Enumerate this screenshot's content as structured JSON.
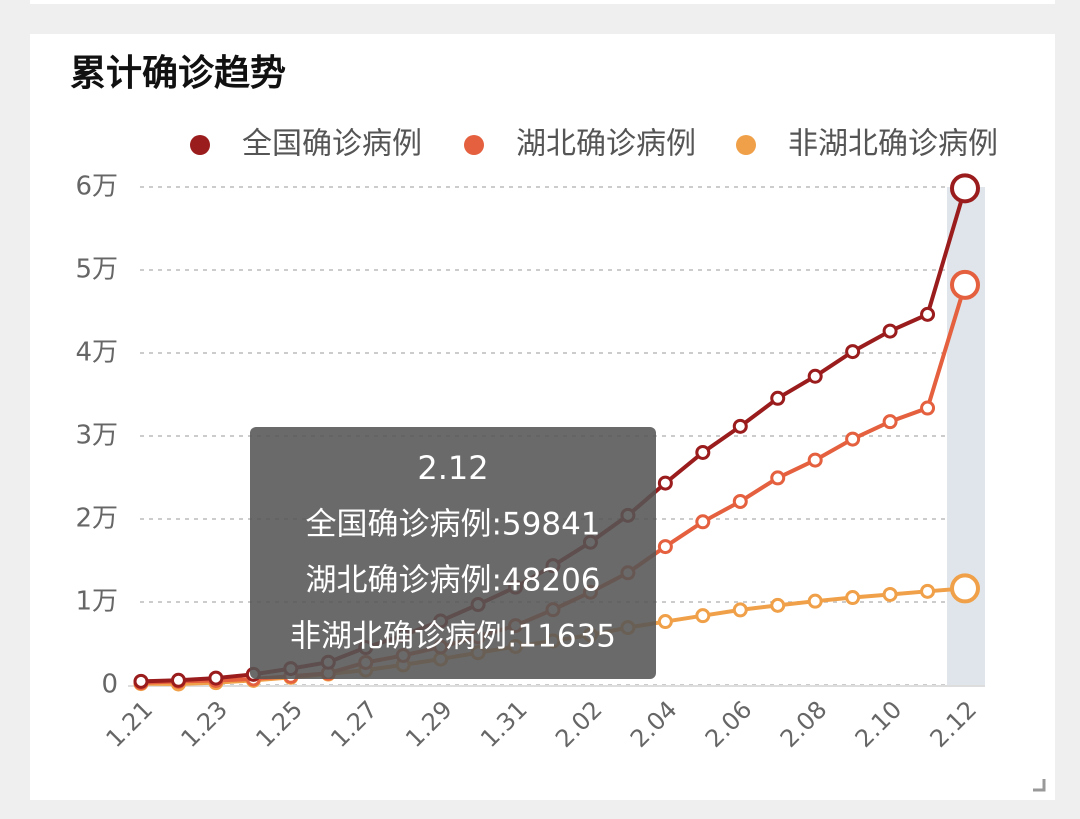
{
  "chart_data": {
    "type": "line",
    "title": "累计确诊趋势",
    "categories": [
      "1.21",
      null,
      "1.23",
      null,
      "1.25",
      null,
      "1.27",
      null,
      "1.29",
      null,
      "1.31",
      null,
      "2.02",
      null,
      "2.04",
      null,
      "2.06",
      null,
      "2.08",
      null,
      "2.10",
      null,
      "2.12"
    ],
    "series": [
      {
        "name": "全国确诊病例",
        "color": "#9b1c1c",
        "values": [
          440,
          571,
          830,
          1287,
          1975,
          2744,
          4515,
          5974,
          7711,
          9692,
          11791,
          14380,
          17205,
          20438,
          24324,
          28018,
          31161,
          34546,
          37198,
          40171,
          42638,
          44653,
          59841
        ]
      },
      {
        "name": "湖北确诊病例",
        "color": "#e4603e",
        "values": [
          270,
          444,
          549,
          729,
          1052,
          1423,
          2714,
          3554,
          4586,
          5806,
          7153,
          9074,
          11177,
          13522,
          16678,
          19665,
          22112,
          24953,
          27100,
          29631,
          31728,
          33366,
          48206
        ]
      },
      {
        "name": "非湖北确诊病例",
        "color": "#f0a048",
        "values": [
          170,
          127,
          281,
          558,
          923,
          1321,
          1801,
          2420,
          3125,
          3886,
          4638,
          5306,
          6028,
          6916,
          7646,
          8353,
          9049,
          9593,
          10098,
          10540,
          10910,
          11287,
          11635
        ]
      }
    ],
    "ylim": [
      0,
      60000
    ],
    "yticks": [
      0,
      {
        "value": 10000,
        "label": "1万"
      },
      {
        "value": 20000,
        "label": "2万"
      },
      {
        "value": 30000,
        "label": "3万"
      },
      {
        "value": 40000,
        "label": "4万"
      },
      {
        "value": 50000,
        "label": "5万"
      },
      {
        "value": 60000,
        "label": "6万"
      }
    ],
    "grid": true,
    "legend": "top-right",
    "tooltip": {
      "title": "2.12",
      "lines": [
        "全国确诊病例:59841",
        "湖北确诊病例:48206",
        "非湖北确诊病例:11635"
      ]
    }
  }
}
